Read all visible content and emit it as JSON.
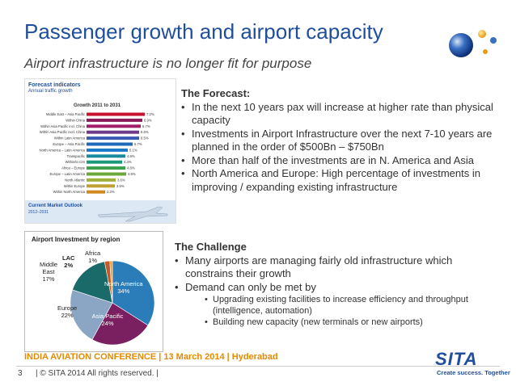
{
  "slide": {
    "title": "Passenger growth and airport capacity",
    "subtitle": "Airport infrastructure is no longer fit for purpose"
  },
  "forecast_image": {
    "heading": "Forecast indicators",
    "subheading": "Annual traffic growth",
    "chart_title": "Growth 2011 to 2031",
    "footer_title": "Current Market Outlook",
    "footer_sub": "2012–2031",
    "chart_data": {
      "type": "bar",
      "categories": [
        "Middle East – Asia Pacific",
        "Within China",
        "Within Asia Pacific incl. China",
        "Within Asia Pacific excl. China",
        "Within Latin America",
        "Europe – Asia Pacific",
        "North America – Latin America",
        "Transpacific",
        "Within/to CIS",
        "Africa – Europe",
        "Europe – Latin America",
        "North Atlantic",
        "Within Europe",
        "Within North America"
      ],
      "values": [
        7.2,
        6.9,
        6.7,
        6.5,
        6.5,
        5.7,
        5.1,
        4.8,
        4.4,
        4.8,
        4.9,
        3.6,
        3.5,
        2.3
      ],
      "value_labels": [
        "7.2%",
        "6.9%",
        "6.7%",
        "6.5%",
        "6.5%",
        "5.7%",
        "5.1%",
        "4.8%",
        "4.4%",
        "4.8%",
        "4.9%",
        "3.6%",
        "3.5%",
        "2.3%"
      ],
      "xlim": [
        0,
        8
      ]
    }
  },
  "forecast": {
    "heading": "The Forecast:",
    "bullets": [
      "In the next 10 years pax will increase at higher rate than physical capacity",
      "Investments in Airport Infrastructure over the next 7-10 years are planned in the order of $500Bn – $750Bn",
      "More than half of the investments are in N. America and Asia",
      "North America and Europe: High percentage of investments in improving / expanding existing infrastructure"
    ]
  },
  "pie": {
    "title": "Airport Investment by region",
    "chart_data": {
      "type": "pie",
      "labels": [
        "North America",
        "Asia Pacific",
        "Europe",
        "Middle East",
        "LAC",
        "Africa"
      ],
      "values": [
        34,
        24,
        22,
        17,
        2,
        1
      ],
      "value_labels": [
        "34%",
        "24%",
        "22%",
        "17%",
        "2%",
        "1%"
      ],
      "colors": [
        "#2a7db8",
        "#7a2060",
        "#8aa6c4",
        "#1a6a6a",
        "#c05a2a",
        "#e8a23a"
      ]
    }
  },
  "challenge": {
    "heading": "The Challenge",
    "bullets": [
      "Many airports are managing fairly old infrastructure which constrains their growth",
      "Demand can only be met by"
    ],
    "sub_bullets": [
      "Upgrading existing facilities to increase efficiency and throughput (intelligence, automation)",
      " Building new capacity (new terminals or new airports)"
    ]
  },
  "footer": {
    "conference": "INDIA AVIATION CONFERENCE |  13 March 2014  |  Hyderabad",
    "page": "3",
    "copyright": "| © SITA 2014 All rights reserved. |",
    "logo_word": "SITA",
    "tagline": "Create success. Together"
  }
}
